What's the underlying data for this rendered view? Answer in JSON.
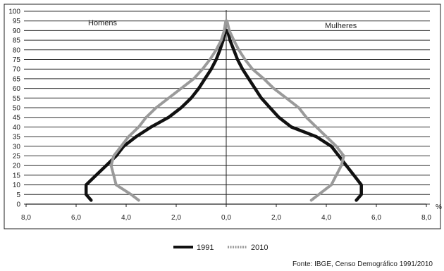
{
  "chart_data": {
    "type": "line",
    "title": "",
    "xlabel": "",
    "ylabel": "",
    "x_unit": "%",
    "xlim": [
      -8,
      8
    ],
    "ylim": [
      0,
      100
    ],
    "x_tick_labels": [
      "8,0",
      "6,0",
      "4,0",
      "2,0",
      "0,0",
      "2,0",
      "4,0",
      "6,0",
      "8,0"
    ],
    "y_tick_labels": [
      "0",
      "5",
      "10",
      "15",
      "20",
      "25",
      "30",
      "35",
      "40",
      "45",
      "50",
      "55",
      "60",
      "65",
      "70",
      "75",
      "80",
      "85",
      "90",
      "95",
      "100"
    ],
    "grid": "horizontal",
    "side_labels": {
      "left": "Homens",
      "right": "Mulheres"
    },
    "legend": {
      "position": "bottom-center"
    },
    "source": "Fonte: IBGE, Censo Demográfico 1991/2010",
    "series": [
      {
        "name": "1991",
        "color": "#111111",
        "style": "solid",
        "men": [
          {
            "age": 2,
            "pct": 5.4
          },
          {
            "age": 5,
            "pct": 5.6
          },
          {
            "age": 10,
            "pct": 5.6
          },
          {
            "age": 15,
            "pct": 5.2
          },
          {
            "age": 20,
            "pct": 4.8
          },
          {
            "age": 25,
            "pct": 4.4
          },
          {
            "age": 30,
            "pct": 4.1
          },
          {
            "age": 35,
            "pct": 3.6
          },
          {
            "age": 40,
            "pct": 3.0
          },
          {
            "age": 45,
            "pct": 2.3
          },
          {
            "age": 50,
            "pct": 1.8
          },
          {
            "age": 55,
            "pct": 1.4
          },
          {
            "age": 60,
            "pct": 1.1
          },
          {
            "age": 65,
            "pct": 0.85
          },
          {
            "age": 70,
            "pct": 0.6
          },
          {
            "age": 75,
            "pct": 0.4
          },
          {
            "age": 80,
            "pct": 0.25
          },
          {
            "age": 85,
            "pct": 0.12
          },
          {
            "age": 90,
            "pct": 0.04
          }
        ],
        "women": [
          {
            "age": 2,
            "pct": 5.2
          },
          {
            "age": 5,
            "pct": 5.4
          },
          {
            "age": 10,
            "pct": 5.4
          },
          {
            "age": 15,
            "pct": 5.1
          },
          {
            "age": 20,
            "pct": 4.8
          },
          {
            "age": 25,
            "pct": 4.5
          },
          {
            "age": 30,
            "pct": 4.2
          },
          {
            "age": 35,
            "pct": 3.6
          },
          {
            "age": 40,
            "pct": 2.6
          },
          {
            "age": 45,
            "pct": 2.1
          },
          {
            "age": 50,
            "pct": 1.75
          },
          {
            "age": 55,
            "pct": 1.4
          },
          {
            "age": 60,
            "pct": 1.15
          },
          {
            "age": 65,
            "pct": 0.9
          },
          {
            "age": 70,
            "pct": 0.65
          },
          {
            "age": 75,
            "pct": 0.45
          },
          {
            "age": 80,
            "pct": 0.3
          },
          {
            "age": 85,
            "pct": 0.15
          },
          {
            "age": 90,
            "pct": 0.05
          }
        ]
      },
      {
        "name": "2010",
        "color": "#9a9a9a",
        "style": "dotted",
        "men": [
          {
            "age": 2,
            "pct": 3.5
          },
          {
            "age": 5,
            "pct": 3.8
          },
          {
            "age": 10,
            "pct": 4.4
          },
          {
            "age": 15,
            "pct": 4.5
          },
          {
            "age": 20,
            "pct": 4.6
          },
          {
            "age": 25,
            "pct": 4.5
          },
          {
            "age": 30,
            "pct": 4.2
          },
          {
            "age": 35,
            "pct": 3.9
          },
          {
            "age": 40,
            "pct": 3.5
          },
          {
            "age": 45,
            "pct": 3.2
          },
          {
            "age": 50,
            "pct": 2.8
          },
          {
            "age": 55,
            "pct": 2.3
          },
          {
            "age": 60,
            "pct": 1.8
          },
          {
            "age": 65,
            "pct": 1.3
          },
          {
            "age": 70,
            "pct": 0.95
          },
          {
            "age": 75,
            "pct": 0.65
          },
          {
            "age": 80,
            "pct": 0.4
          },
          {
            "age": 85,
            "pct": 0.2
          },
          {
            "age": 90,
            "pct": 0.08
          },
          {
            "age": 95,
            "pct": 0.02
          }
        ],
        "women": [
          {
            "age": 2,
            "pct": 3.4
          },
          {
            "age": 5,
            "pct": 3.7
          },
          {
            "age": 10,
            "pct": 4.2
          },
          {
            "age": 15,
            "pct": 4.4
          },
          {
            "age": 20,
            "pct": 4.6
          },
          {
            "age": 25,
            "pct": 4.7
          },
          {
            "age": 30,
            "pct": 4.4
          },
          {
            "age": 35,
            "pct": 4.0
          },
          {
            "age": 40,
            "pct": 3.6
          },
          {
            "age": 45,
            "pct": 3.2
          },
          {
            "age": 50,
            "pct": 2.9
          },
          {
            "age": 55,
            "pct": 2.4
          },
          {
            "age": 60,
            "pct": 1.9
          },
          {
            "age": 65,
            "pct": 1.5
          },
          {
            "age": 70,
            "pct": 1.05
          },
          {
            "age": 75,
            "pct": 0.75
          },
          {
            "age": 80,
            "pct": 0.5
          },
          {
            "age": 85,
            "pct": 0.3
          },
          {
            "age": 90,
            "pct": 0.12
          },
          {
            "age": 95,
            "pct": 0.03
          }
        ]
      }
    ]
  }
}
